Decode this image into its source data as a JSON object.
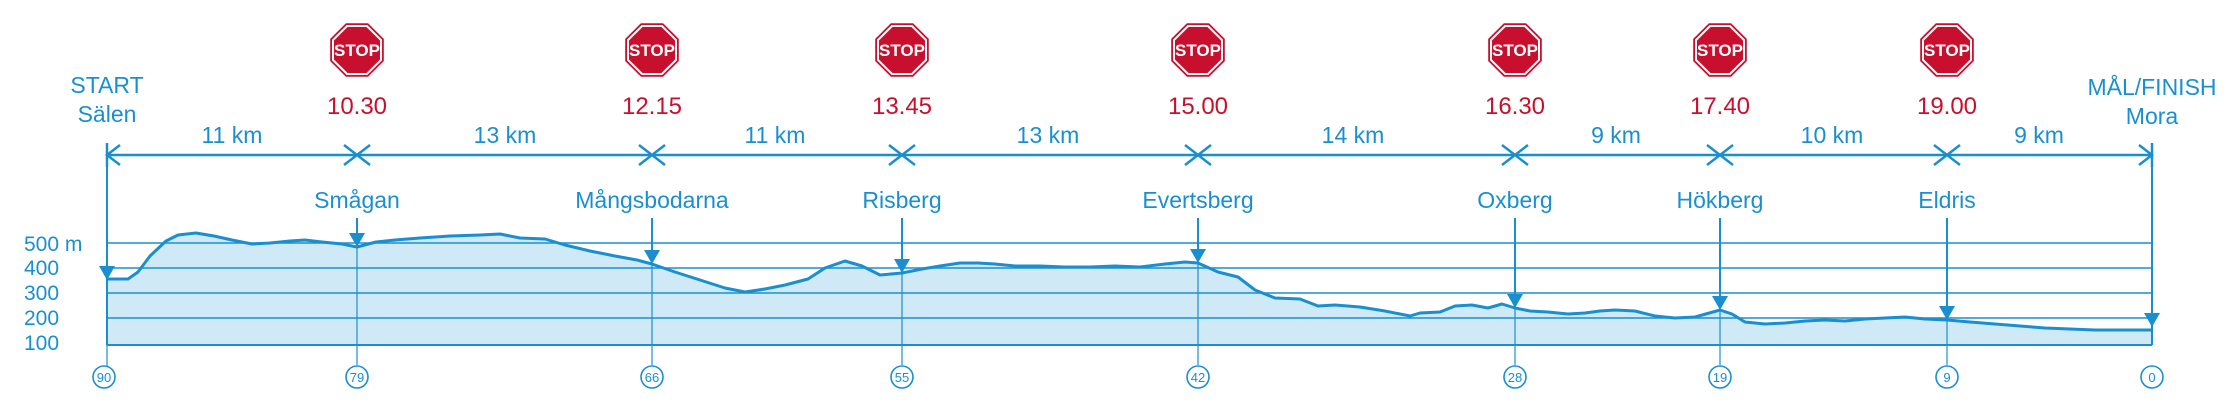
{
  "start": {
    "line1": "START",
    "line2": "Sälen"
  },
  "finish": {
    "line1": "MÅL/FINISH",
    "line2": "Mora"
  },
  "stop_sign_text": "STOP",
  "colors": {
    "blue": "#1a8fd0",
    "red": "#c8102e",
    "fill": "#cfe9f7"
  },
  "elevation_axis": [
    "500 m",
    "400",
    "300",
    "200",
    "100"
  ],
  "stations": [
    {
      "name": "Smågan",
      "km": "79",
      "cutoff": "10.30"
    },
    {
      "name": "Mångsbodarna",
      "km": "66",
      "cutoff": "12.15"
    },
    {
      "name": "Risberg",
      "km": "55",
      "cutoff": "13.45"
    },
    {
      "name": "Evertsberg",
      "km": "42",
      "cutoff": "15.00"
    },
    {
      "name": "Oxberg",
      "km": "28",
      "cutoff": "16.30"
    },
    {
      "name": "Hökberg",
      "km": "19",
      "cutoff": "17.40"
    },
    {
      "name": "Eldris",
      "km": "9",
      "cutoff": "19.00"
    }
  ],
  "start_km": "90",
  "finish_km": "0",
  "segments": [
    "11 km",
    "13 km",
    "11 km",
    "13 km",
    "14 km",
    "9 km",
    "10 km",
    "9 km"
  ]
}
